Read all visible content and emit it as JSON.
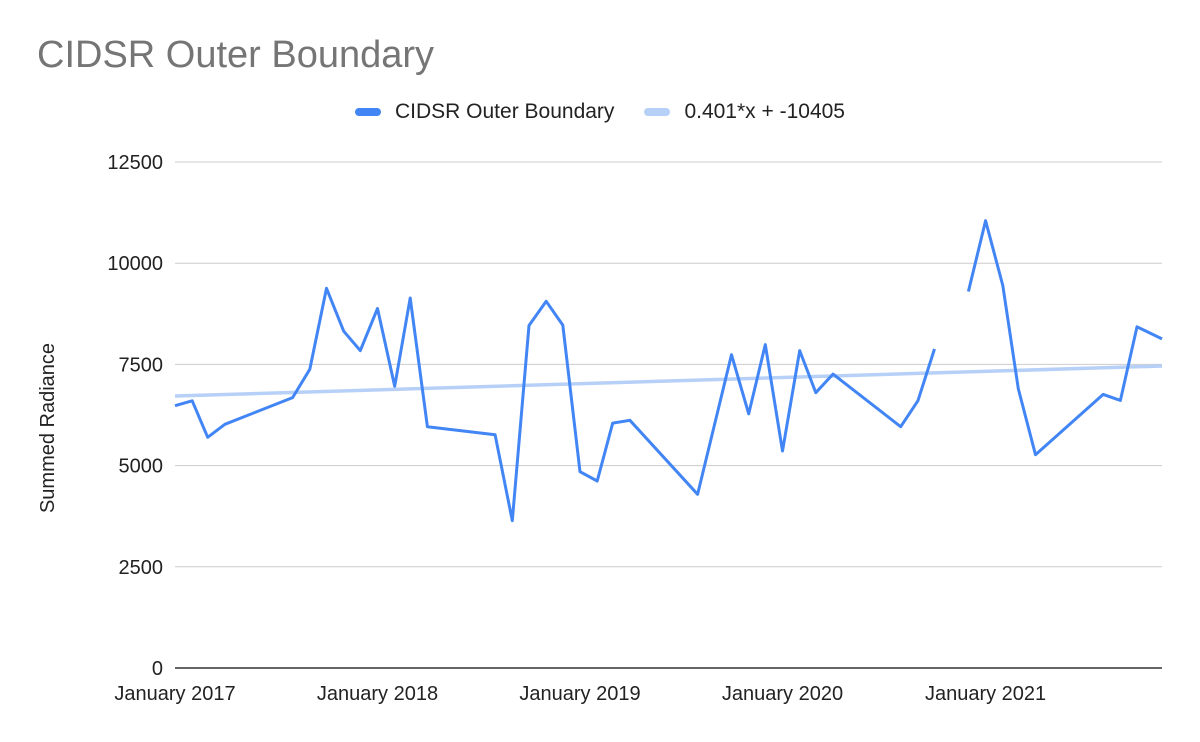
{
  "chart_data": {
    "type": "line",
    "title": "CIDSR Outer Boundary",
    "xlabel": "",
    "ylabel": "Summed Radiance",
    "ylim": [
      0,
      12500
    ],
    "yticks": [
      0,
      2500,
      5000,
      7500,
      10000,
      12500
    ],
    "xtick_labels": [
      "January 2017",
      "January 2018",
      "January 2019",
      "January 2020",
      "January 2021"
    ],
    "xlim": [
      "2017-01-01",
      "2021-11-15"
    ],
    "grid": true,
    "legend_position": "top-center",
    "series": [
      {
        "name": "CIDSR Outer Boundary",
        "color": "#4285f4",
        "points": [
          [
            "2017-01-01",
            6480
          ],
          [
            "2017-02-01",
            6600
          ],
          [
            "2017-03-01",
            5700
          ],
          [
            "2017-04-01",
            6020
          ],
          [
            "2017-08-01",
            6680
          ],
          [
            "2017-09-01",
            7380
          ],
          [
            "2017-10-01",
            9380
          ],
          [
            "2017-11-01",
            8320
          ],
          [
            "2017-12-01",
            7840
          ],
          [
            "2018-01-01",
            8880
          ],
          [
            "2018-02-01",
            6960
          ],
          [
            "2018-03-01",
            9140
          ],
          [
            "2018-04-01",
            5960
          ],
          [
            "2018-08-01",
            5760
          ],
          [
            "2018-09-01",
            3640
          ],
          [
            "2018-10-01",
            8460
          ],
          [
            "2018-11-01",
            9060
          ],
          [
            "2018-12-01",
            8470
          ],
          [
            "2019-01-01",
            4850
          ],
          [
            "2019-02-01",
            4620
          ],
          [
            "2019-03-01",
            6050
          ],
          [
            "2019-04-01",
            6120
          ],
          [
            "2019-08-01",
            4290
          ],
          [
            "2019-10-01",
            7740
          ],
          [
            "2019-11-01",
            6280
          ],
          [
            "2019-12-01",
            7990
          ],
          [
            "2020-01-01",
            5360
          ],
          [
            "2020-02-01",
            7840
          ],
          [
            "2020-03-01",
            6800
          ],
          [
            "2020-04-01",
            7260
          ],
          [
            "2020-08-01",
            5960
          ],
          [
            "2020-09-01",
            6600
          ],
          [
            "2020-10-01",
            7880
          ],
          null,
          [
            "2020-12-01",
            9300
          ],
          [
            "2021-01-01",
            11050
          ],
          [
            "2021-02-01",
            9450
          ],
          [
            "2021-03-01",
            6900
          ],
          [
            "2021-04-01",
            5270
          ],
          [
            "2021-08-01",
            6760
          ],
          [
            "2021-09-01",
            6610
          ],
          [
            "2021-10-01",
            8430
          ],
          [
            "2021-11-15",
            8130
          ]
        ]
      },
      {
        "name": "0.401*x + -10405",
        "color": "#b7d0f7",
        "points": [
          [
            "2017-01-01",
            6720
          ],
          [
            "2021-11-15",
            7460
          ]
        ]
      }
    ]
  }
}
